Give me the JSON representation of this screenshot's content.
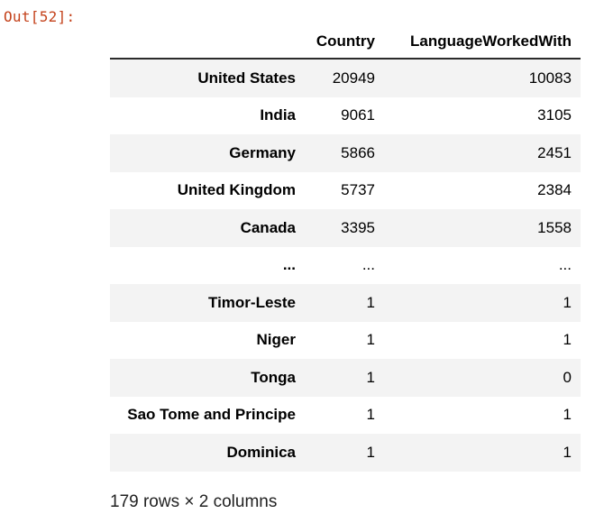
{
  "prompt": "Out[52]:",
  "table": {
    "columns": [
      "Country",
      "LanguageWorkedWith"
    ],
    "rows": [
      {
        "index": "United States",
        "values": [
          "20949",
          "10083"
        ]
      },
      {
        "index": "India",
        "values": [
          "9061",
          "3105"
        ]
      },
      {
        "index": "Germany",
        "values": [
          "5866",
          "2451"
        ]
      },
      {
        "index": "United Kingdom",
        "values": [
          "5737",
          "2384"
        ]
      },
      {
        "index": "Canada",
        "values": [
          "3395",
          "1558"
        ]
      },
      {
        "index": "...",
        "values": [
          "...",
          "..."
        ]
      },
      {
        "index": "Timor-Leste",
        "values": [
          "1",
          "1"
        ]
      },
      {
        "index": "Niger",
        "values": [
          "1",
          "1"
        ]
      },
      {
        "index": "Tonga",
        "values": [
          "1",
          "0"
        ]
      },
      {
        "index": "Sao Tome and Principe",
        "values": [
          "1",
          "1"
        ]
      },
      {
        "index": "Dominica",
        "values": [
          "1",
          "1"
        ]
      }
    ]
  },
  "footer": "179 rows × 2 columns"
}
